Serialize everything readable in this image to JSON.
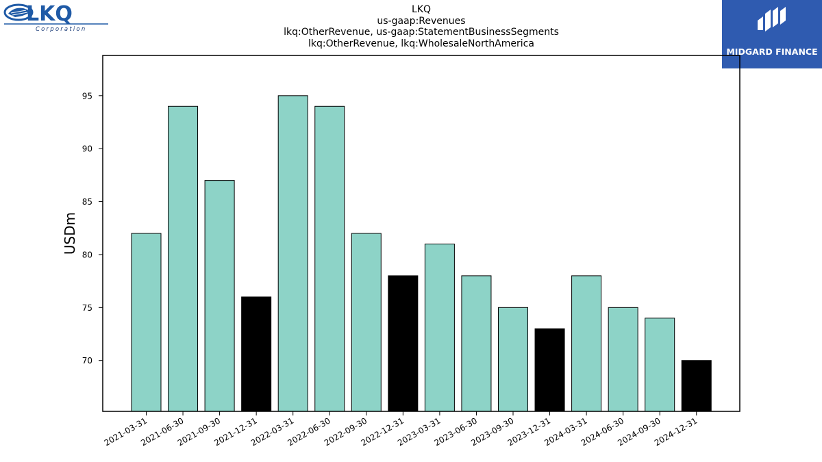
{
  "header": {
    "company_logo_text": "LKQ",
    "company_logo_subtext": "Corporation",
    "brand_logo_text": "MIDGARD FINANCE"
  },
  "colors": {
    "actual_bar": "#8dd3c7",
    "highlight_bar": "#000000",
    "brand_background": "#2f5bb0"
  },
  "chart_data": {
    "type": "bar",
    "title": "LKQ",
    "subtitle_lines": [
      "us-gaap:Revenues",
      "lkq:OtherRevenue, us-gaap:StatementBusinessSegments",
      "lkq:OtherRevenue, lkq:WholesaleNorthAmerica"
    ],
    "xlabel": "",
    "ylabel": "USDm",
    "ylim": [
      65.2,
      98.8
    ],
    "yticks": [
      70,
      75,
      80,
      85,
      90,
      95
    ],
    "grid": false,
    "categories": [
      "2021-03-31",
      "2021-06-30",
      "2021-09-30",
      "2021-12-31",
      "2022-03-31",
      "2022-06-30",
      "2022-09-30",
      "2022-12-31",
      "2023-03-31",
      "2023-06-30",
      "2023-09-30",
      "2023-12-31",
      "2024-03-31",
      "2024-06-30",
      "2024-09-30",
      "2024-12-31"
    ],
    "values": [
      82,
      94,
      87,
      76,
      95,
      94,
      82,
      78,
      81,
      78,
      75,
      73,
      78,
      75,
      74,
      70
    ],
    "bar_colors": [
      "#8dd3c7",
      "#8dd3c7",
      "#8dd3c7",
      "#000000",
      "#8dd3c7",
      "#8dd3c7",
      "#8dd3c7",
      "#000000",
      "#8dd3c7",
      "#8dd3c7",
      "#8dd3c7",
      "#000000",
      "#8dd3c7",
      "#8dd3c7",
      "#8dd3c7",
      "#000000"
    ]
  }
}
